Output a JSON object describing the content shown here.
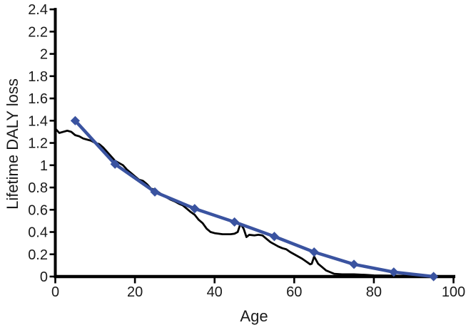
{
  "page": {
    "background": "#ffffff"
  },
  "chart_data": {
    "type": "line",
    "title": "",
    "xlabel": "Age",
    "ylabel": "Lifetime DALY loss",
    "xlim": [
      0,
      100
    ],
    "ylim": [
      0,
      2.4
    ],
    "x_ticks": [
      0,
      20,
      40,
      60,
      80,
      100
    ],
    "x_tick_labels": [
      "0",
      "20",
      "40",
      "60",
      "80",
      "100"
    ],
    "y_ticks": [
      0,
      0.2,
      0.4,
      0.6,
      0.8,
      1.0,
      1.2,
      1.4,
      1.6,
      1.8,
      2.0,
      2.2,
      2.4
    ],
    "y_tick_labels": [
      "0",
      "0.2",
      "0.4",
      "0.6",
      "0.8",
      "1",
      "1.2",
      "1.4",
      "1.6",
      "1.8",
      "2",
      "2.2",
      "2.4"
    ],
    "grid": false,
    "legend": "none",
    "axis_color": "#000000",
    "text_color": "#1a1a1a",
    "series": [
      {
        "name": "black jagged line",
        "color": "#000000",
        "marker": "none",
        "line_width": 2.8,
        "points": [
          [
            0,
            1.33
          ],
          [
            1,
            1.29
          ],
          [
            2,
            1.3
          ],
          [
            3,
            1.31
          ],
          [
            4,
            1.3
          ],
          [
            5,
            1.27
          ],
          [
            6,
            1.26
          ],
          [
            7,
            1.24
          ],
          [
            8,
            1.23
          ],
          [
            9,
            1.22
          ],
          [
            10,
            1.2
          ],
          [
            11,
            1.19
          ],
          [
            12,
            1.16
          ],
          [
            13,
            1.12
          ],
          [
            14,
            1.08
          ],
          [
            15,
            1.04
          ],
          [
            16,
            1.02
          ],
          [
            17,
            1.0
          ],
          [
            18,
            0.96
          ],
          [
            19,
            0.93
          ],
          [
            20,
            0.9
          ],
          [
            21,
            0.87
          ],
          [
            22,
            0.86
          ],
          [
            23,
            0.83
          ],
          [
            24,
            0.79
          ],
          [
            25,
            0.78
          ],
          [
            26,
            0.755
          ],
          [
            27,
            0.73
          ],
          [
            28,
            0.71
          ],
          [
            29,
            0.69
          ],
          [
            30,
            0.675
          ],
          [
            31,
            0.655
          ],
          [
            32,
            0.64
          ],
          [
            33,
            0.61
          ],
          [
            34,
            0.58
          ],
          [
            35,
            0.555
          ],
          [
            36,
            0.51
          ],
          [
            37,
            0.48
          ],
          [
            38,
            0.43
          ],
          [
            39,
            0.4
          ],
          [
            40,
            0.39
          ],
          [
            41,
            0.385
          ],
          [
            42,
            0.38
          ],
          [
            43,
            0.38
          ],
          [
            44,
            0.38
          ],
          [
            45,
            0.385
          ],
          [
            45.8,
            0.4
          ],
          [
            46.5,
            0.475
          ],
          [
            47.3,
            0.43
          ],
          [
            48,
            0.355
          ],
          [
            48.7,
            0.375
          ],
          [
            50,
            0.37
          ],
          [
            51,
            0.375
          ],
          [
            52,
            0.37
          ],
          [
            53,
            0.34
          ],
          [
            54,
            0.31
          ],
          [
            55,
            0.29
          ],
          [
            56,
            0.27
          ],
          [
            57,
            0.255
          ],
          [
            58,
            0.245
          ],
          [
            59,
            0.22
          ],
          [
            60,
            0.2
          ],
          [
            61,
            0.18
          ],
          [
            62,
            0.16
          ],
          [
            63,
            0.135
          ],
          [
            64,
            0.11
          ],
          [
            64.4,
            0.115
          ],
          [
            65,
            0.18
          ],
          [
            66,
            0.115
          ],
          [
            67,
            0.085
          ],
          [
            68,
            0.055
          ],
          [
            69,
            0.04
          ],
          [
            70,
            0.025
          ],
          [
            72,
            0.02
          ],
          [
            75,
            0.02
          ],
          [
            78,
            0.015
          ],
          [
            80,
            0.01
          ],
          [
            85,
            0.008
          ],
          [
            90,
            0.005
          ],
          [
            95,
            0.003
          ],
          [
            100,
            0
          ]
        ]
      },
      {
        "name": "blue diamond line",
        "color": "#3A53A0",
        "marker": "diamond",
        "line_width": 4.5,
        "points": [
          [
            5,
            1.4
          ],
          [
            15,
            1.01
          ],
          [
            25,
            0.76
          ],
          [
            35,
            0.61
          ],
          [
            45,
            0.49
          ],
          [
            55,
            0.36
          ],
          [
            65,
            0.22
          ],
          [
            75,
            0.11
          ],
          [
            85,
            0.04
          ],
          [
            95,
            0.0
          ]
        ]
      }
    ]
  }
}
